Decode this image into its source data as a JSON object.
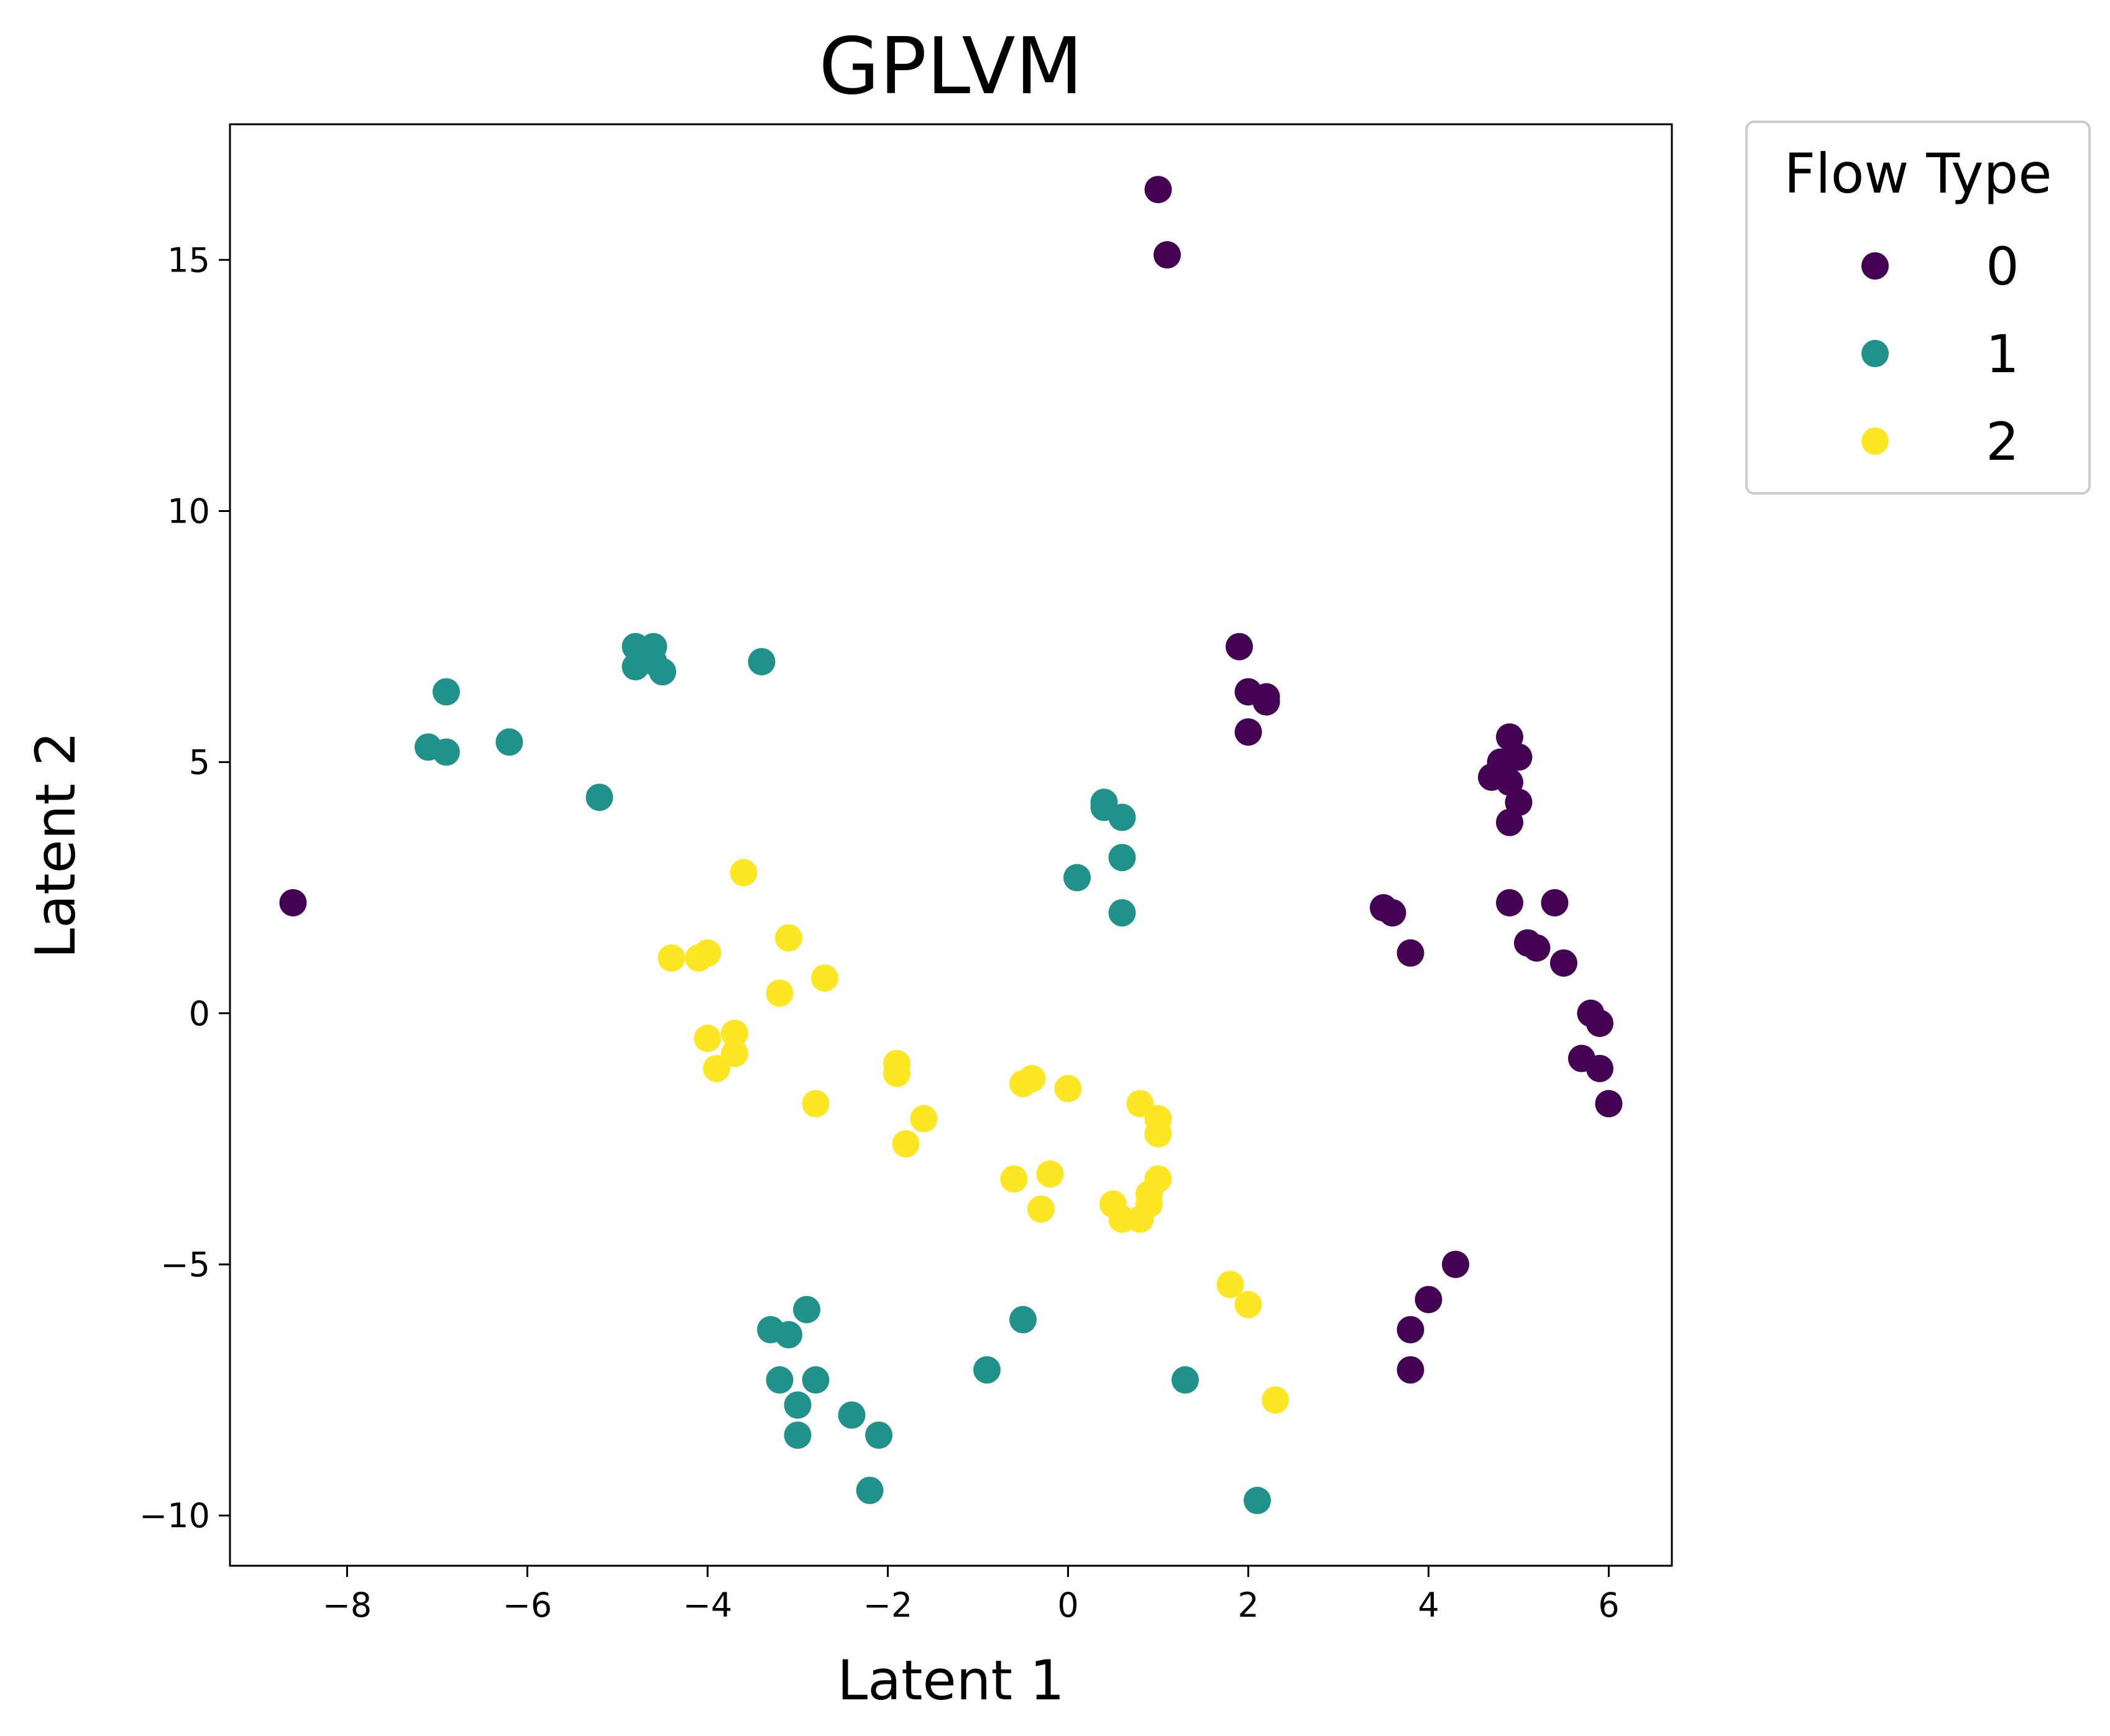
{
  "chart_data": {
    "type": "scatter",
    "title": "GPLVM",
    "xlabel": "Latent 1",
    "ylabel": "Latent 2",
    "xlim": [
      -9.3,
      6.7
    ],
    "ylim": [
      -11.0,
      17.7
    ],
    "xticks": [
      -8,
      -6,
      -4,
      -2,
      0,
      2,
      4,
      6
    ],
    "xtick_labels": [
      "−8",
      "−6",
      "−4",
      "−2",
      "0",
      "2",
      "4",
      "6"
    ],
    "yticks": [
      -10,
      -5,
      0,
      5,
      10,
      15
    ],
    "ytick_labels": [
      "−10",
      "−5",
      "0",
      "5",
      "10",
      "15"
    ],
    "grid": false,
    "legend": {
      "title": "Flow Type",
      "placement": "outside-top-right"
    },
    "series": [
      {
        "name": "0",
        "color": "#440154",
        "points": [
          [
            1.0,
            16.4
          ],
          [
            1.1,
            15.1
          ],
          [
            -8.6,
            2.2
          ],
          [
            1.9,
            7.3
          ],
          [
            2.0,
            6.4
          ],
          [
            2.2,
            6.3
          ],
          [
            2.2,
            6.2
          ],
          [
            2.0,
            5.6
          ],
          [
            4.9,
            5.5
          ],
          [
            5.0,
            5.1
          ],
          [
            4.8,
            5.0
          ],
          [
            4.7,
            4.7
          ],
          [
            4.9,
            4.6
          ],
          [
            5.0,
            4.2
          ],
          [
            4.9,
            3.8
          ],
          [
            4.9,
            2.2
          ],
          [
            5.4,
            2.2
          ],
          [
            5.1,
            1.4
          ],
          [
            5.2,
            1.3
          ],
          [
            5.5,
            1.0
          ],
          [
            3.5,
            2.1
          ],
          [
            3.6,
            2.0
          ],
          [
            3.8,
            1.2
          ],
          [
            5.8,
            0.0
          ],
          [
            5.9,
            -0.2
          ],
          [
            5.7,
            -0.9
          ],
          [
            5.9,
            -1.1
          ],
          [
            6.0,
            -1.8
          ],
          [
            4.3,
            -5.0
          ],
          [
            4.0,
            -5.7
          ],
          [
            3.8,
            -6.3
          ],
          [
            3.8,
            -7.1
          ]
        ]
      },
      {
        "name": "1",
        "color": "#21918c",
        "points": [
          [
            -6.9,
            6.4
          ],
          [
            -7.1,
            5.3
          ],
          [
            -6.9,
            5.2
          ],
          [
            -6.2,
            5.4
          ],
          [
            -5.2,
            4.3
          ],
          [
            -4.8,
            7.3
          ],
          [
            -4.6,
            7.3
          ],
          [
            -4.8,
            6.9
          ],
          [
            -4.6,
            7.0
          ],
          [
            -4.5,
            6.8
          ],
          [
            -3.4,
            7.0
          ],
          [
            0.4,
            4.2
          ],
          [
            0.4,
            4.1
          ],
          [
            0.6,
            3.9
          ],
          [
            0.6,
            3.1
          ],
          [
            0.1,
            2.7
          ],
          [
            0.6,
            2.0
          ],
          [
            -0.5,
            -6.1
          ],
          [
            -0.9,
            -7.1
          ],
          [
            1.3,
            -7.3
          ],
          [
            2.1,
            -9.7
          ],
          [
            -2.9,
            -5.9
          ],
          [
            -3.3,
            -6.3
          ],
          [
            -3.1,
            -6.4
          ],
          [
            -3.2,
            -7.3
          ],
          [
            -2.8,
            -7.3
          ],
          [
            -3.0,
            -7.8
          ],
          [
            -2.4,
            -8.0
          ],
          [
            -3.0,
            -8.4
          ],
          [
            -2.1,
            -8.4
          ],
          [
            -2.2,
            -9.5
          ]
        ]
      },
      {
        "name": "2",
        "color": "#fde725",
        "points": [
          [
            -3.6,
            2.8
          ],
          [
            -3.1,
            1.5
          ],
          [
            -4.4,
            1.1
          ],
          [
            -4.1,
            1.1
          ],
          [
            -4.0,
            1.2
          ],
          [
            -3.2,
            0.4
          ],
          [
            -2.7,
            0.7
          ],
          [
            -4.0,
            -0.5
          ],
          [
            -3.7,
            -0.4
          ],
          [
            -3.7,
            -0.8
          ],
          [
            -3.9,
            -1.1
          ],
          [
            -2.8,
            -1.8
          ],
          [
            -1.9,
            -1.0
          ],
          [
            -1.9,
            -1.2
          ],
          [
            -1.6,
            -2.1
          ],
          [
            -1.8,
            -2.6
          ],
          [
            -0.4,
            -1.3
          ],
          [
            -0.5,
            -1.4
          ],
          [
            0.0,
            -1.5
          ],
          [
            0.8,
            -1.8
          ],
          [
            1.0,
            -2.1
          ],
          [
            1.0,
            -2.4
          ],
          [
            -0.6,
            -3.3
          ],
          [
            -0.2,
            -3.2
          ],
          [
            -0.3,
            -3.9
          ],
          [
            0.5,
            -3.8
          ],
          [
            0.6,
            -4.1
          ],
          [
            0.8,
            -4.1
          ],
          [
            0.9,
            -3.6
          ],
          [
            1.0,
            -3.3
          ],
          [
            0.9,
            -3.8
          ],
          [
            1.8,
            -5.4
          ],
          [
            2.0,
            -5.8
          ],
          [
            2.3,
            -7.7
          ]
        ]
      }
    ]
  }
}
